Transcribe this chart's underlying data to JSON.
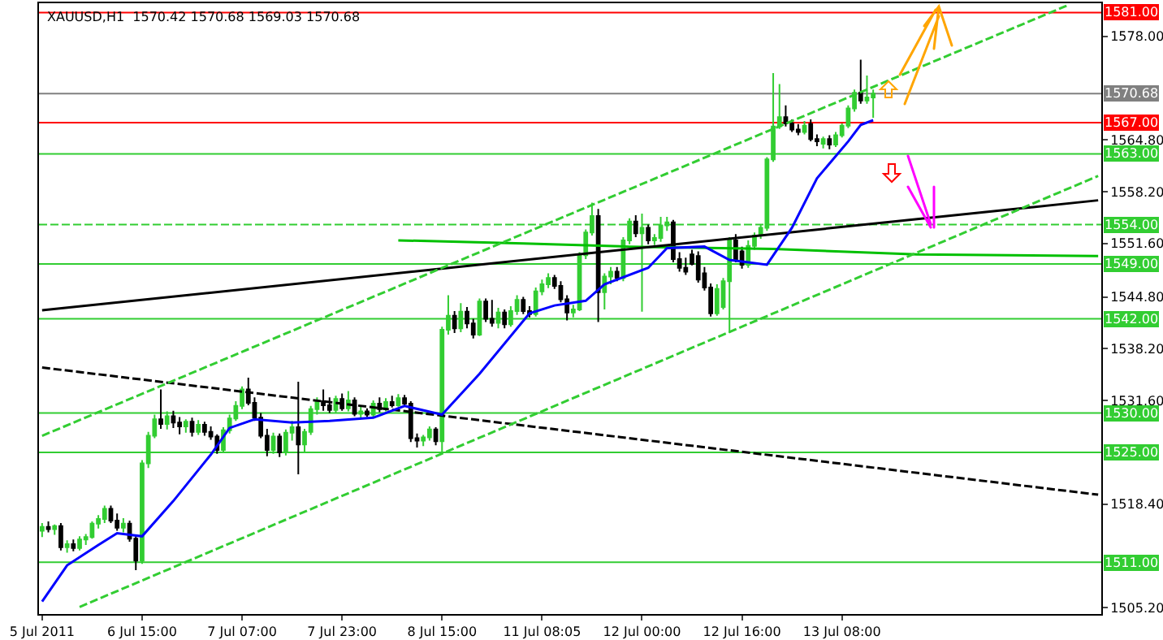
{
  "chart_data": {
    "type": "candlestick",
    "title": "XAUUSD,H1  1570.42 1570.68 1569.03 1570.68",
    "categories": [
      "5 Jul 2011",
      null,
      null,
      null,
      null,
      null,
      null,
      null,
      null,
      null,
      null,
      null,
      null,
      null,
      null,
      null,
      "6 Jul 15:00",
      null,
      null,
      null,
      null,
      null,
      null,
      null,
      null,
      null,
      null,
      null,
      null,
      null,
      null,
      null,
      "7 Jul 07:00",
      null,
      null,
      null,
      null,
      null,
      null,
      null,
      null,
      null,
      null,
      null,
      null,
      null,
      null,
      null,
      "7 Jul 23:00",
      null,
      null,
      null,
      null,
      null,
      null,
      null,
      null,
      null,
      null,
      null,
      null,
      null,
      null,
      null,
      "8 Jul 15:00",
      null,
      null,
      null,
      null,
      null,
      null,
      null,
      null,
      null,
      null,
      null,
      null,
      null,
      null,
      null,
      "11 Jul 08:05",
      null,
      null,
      null,
      null,
      null,
      null,
      null,
      null,
      null,
      null,
      null,
      null,
      null,
      null,
      null,
      "12 Jul 00:00",
      null,
      null,
      null,
      null,
      null,
      null,
      null,
      null,
      null,
      null,
      null,
      null,
      null,
      null,
      null,
      "12 Jul 16:00",
      null,
      null,
      null,
      null,
      null,
      null,
      null,
      null,
      null,
      null,
      null,
      null,
      null,
      null,
      null,
      "13 Jul 08:00",
      null,
      null,
      null,
      null,
      null,
      null,
      null,
      null,
      null,
      null,
      null,
      null,
      null,
      null,
      null,
      null,
      null,
      null,
      null,
      null,
      null,
      null,
      null,
      null,
      null,
      null,
      null,
      null,
      null,
      null,
      null,
      null,
      null,
      null,
      null,
      null,
      null,
      null,
      null,
      null,
      null
    ],
    "colors": [
      "#32cd32",
      "#000000",
      "#32cd32",
      "#000000",
      "#32cd32",
      "#000000",
      "#32cd32",
      "#32cd32",
      "#32cd32",
      "#32cd32",
      "#32cd32",
      "#000000",
      "#000000",
      "#32cd32",
      "#000000",
      "#000000",
      "#32cd32",
      "#32cd32",
      "#32cd32",
      "#000000",
      "#32cd32",
      "#000000",
      "#000000",
      "#32cd32",
      "#000000",
      "#32cd32",
      "#000000",
      "#000000",
      "#000000",
      "#32cd32",
      "#32cd32",
      "#32cd32",
      "#32cd32",
      "#000000",
      "#000000",
      "#000000",
      "#000000",
      "#32cd32",
      "#000000",
      "#32cd32",
      "#32cd32",
      "#000000",
      "#32cd32",
      "#32cd32",
      "#32cd32",
      "#000000",
      "#000000",
      "#32cd32",
      "#000000",
      "#32cd32",
      "#000000",
      "#32cd32",
      "#000000",
      "#32cd32",
      "#000000",
      "#32cd32",
      "#000000",
      "#32cd32",
      "#000000",
      "#000000",
      "#000000",
      "#32cd32",
      "#32cd32",
      "#000000",
      "#32cd32",
      "#32cd32",
      "#000000",
      "#32cd32",
      "#000000",
      "#000000",
      "#32cd32",
      "#000000",
      "#000000",
      "#32cd32",
      "#000000",
      "#32cd32",
      "#32cd32",
      "#000000",
      "#000000",
      "#32cd32",
      "#32cd32",
      "#32cd32",
      "#000000",
      "#000000",
      "#000000",
      "#32cd32",
      "#32cd32",
      "#32cd32",
      "#32cd32",
      "#000000",
      "#32cd32",
      "#32cd32",
      "#000000",
      "#32cd32",
      "#32cd32",
      "#000000",
      "#32cd32",
      "#000000",
      "#32cd32",
      "#32cd32",
      "#32cd32",
      "#000000",
      "#000000",
      "#000000",
      "#000000",
      "#000000",
      "#000000",
      "#000000",
      "#32cd32",
      "#32cd32",
      "#32cd32",
      "#000000",
      "#000000",
      "#32cd32",
      "#32cd32",
      "#32cd32",
      "#32cd32",
      "#32cd32",
      "#32cd32",
      "#000000",
      "#000000",
      "#000000",
      "#32cd32",
      "#000000",
      "#000000",
      "#32cd32",
      "#000000",
      "#32cd32",
      "#32cd32",
      "#32cd32",
      "#32cd32",
      "#000000",
      "#32cd32",
      "#32cd32",
      null,
      null,
      null,
      null,
      null,
      null,
      null,
      null,
      null,
      null,
      null,
      null,
      null,
      null,
      null,
      null,
      null,
      null,
      null,
      null,
      null,
      null,
      null,
      null,
      null,
      null,
      null,
      null,
      null,
      null,
      null,
      null,
      null,
      null,
      null,
      null
    ],
    "ohlc": [
      [
        1515.0,
        1516.0,
        1514.2,
        1515.5
      ],
      [
        1515.5,
        1516.2,
        1514.8,
        1515.2
      ],
      [
        1515.2,
        1515.8,
        1514.5,
        1515.6
      ],
      [
        1515.6,
        1516.0,
        1512.5,
        1512.9
      ],
      [
        1512.9,
        1513.8,
        1512.2,
        1513.3
      ],
      [
        1513.3,
        1513.9,
        1512.4,
        1512.8
      ],
      [
        1512.8,
        1514.3,
        1512.5,
        1513.9
      ],
      [
        1513.9,
        1514.6,
        1513.2,
        1514.2
      ],
      [
        1514.2,
        1516.2,
        1514.0,
        1515.9
      ],
      [
        1515.9,
        1517.0,
        1515.3,
        1516.5
      ],
      [
        1516.5,
        1518.2,
        1516.0,
        1517.8
      ],
      [
        1517.8,
        1518.2,
        1516.0,
        1516.3
      ],
      [
        1516.3,
        1517.2,
        1515.0,
        1515.4
      ],
      [
        1515.4,
        1516.6,
        1514.8,
        1515.9
      ],
      [
        1515.9,
        1516.3,
        1513.6,
        1514.0
      ],
      [
        1514.0,
        1514.4,
        1510.0,
        1511.2
      ],
      [
        1511.2,
        1524.0,
        1510.8,
        1523.6
      ],
      [
        1523.6,
        1527.6,
        1523.0,
        1527.1
      ],
      [
        1527.1,
        1529.8,
        1526.8,
        1529.2
      ],
      [
        1529.2,
        1533.0,
        1528.0,
        1528.6
      ],
      [
        1528.6,
        1530.2,
        1527.9,
        1529.6
      ],
      [
        1529.6,
        1530.3,
        1528.1,
        1528.8
      ],
      [
        1528.8,
        1529.5,
        1527.3,
        1528.3
      ],
      [
        1528.3,
        1529.2,
        1527.5,
        1528.9
      ],
      [
        1528.9,
        1529.4,
        1527.0,
        1527.6
      ],
      [
        1527.6,
        1529.1,
        1527.2,
        1528.5
      ],
      [
        1528.5,
        1528.9,
        1527.1,
        1527.6
      ],
      [
        1527.6,
        1528.3,
        1526.6,
        1527.0
      ],
      [
        1527.0,
        1527.3,
        1524.8,
        1525.3
      ],
      [
        1525.3,
        1528.2,
        1525.0,
        1527.8
      ],
      [
        1527.8,
        1529.8,
        1527.4,
        1529.3
      ],
      [
        1529.3,
        1531.5,
        1529.0,
        1530.9
      ],
      [
        1530.9,
        1533.4,
        1530.5,
        1533.0
      ],
      [
        1533.0,
        1534.5,
        1531.0,
        1531.3
      ],
      [
        1531.3,
        1532.0,
        1529.0,
        1529.4
      ],
      [
        1529.4,
        1530.0,
        1526.8,
        1527.1
      ],
      [
        1527.1,
        1528.0,
        1524.5,
        1525.3
      ],
      [
        1525.3,
        1527.5,
        1524.8,
        1527.0
      ],
      [
        1527.0,
        1527.4,
        1524.4,
        1525.0
      ],
      [
        1525.0,
        1527.9,
        1524.6,
        1527.5
      ],
      [
        1527.5,
        1529.0,
        1526.5,
        1528.2
      ],
      [
        1528.2,
        1534.0,
        1522.2,
        1526.0
      ],
      [
        1526.0,
        1528.0,
        1525.0,
        1527.6
      ],
      [
        1527.6,
        1530.9,
        1527.2,
        1530.5
      ],
      [
        1530.5,
        1532.0,
        1529.8,
        1531.5
      ],
      [
        1531.5,
        1533.0,
        1530.3,
        1531.0
      ],
      [
        1531.0,
        1532.0,
        1530.0,
        1530.4
      ],
      [
        1530.4,
        1532.2,
        1530.0,
        1531.8
      ],
      [
        1531.8,
        1532.5,
        1530.3,
        1530.6
      ],
      [
        1530.6,
        1532.8,
        1530.2,
        1531.6
      ],
      [
        1531.6,
        1532.0,
        1529.6,
        1529.9
      ],
      [
        1529.9,
        1530.8,
        1529.4,
        1530.2
      ],
      [
        1530.2,
        1530.6,
        1529.5,
        1529.8
      ],
      [
        1529.8,
        1531.6,
        1529.5,
        1531.2
      ],
      [
        1531.2,
        1532.0,
        1530.1,
        1530.5
      ],
      [
        1530.5,
        1531.9,
        1530.2,
        1531.4
      ],
      [
        1531.4,
        1532.2,
        1530.7,
        1531.0
      ],
      [
        1531.0,
        1532.4,
        1530.8,
        1531.9
      ],
      [
        1531.9,
        1532.3,
        1530.9,
        1531.2
      ],
      [
        1531.2,
        1531.5,
        1526.3,
        1526.8
      ],
      [
        1526.8,
        1527.4,
        1525.6,
        1526.5
      ],
      [
        1526.5,
        1527.2,
        1525.8,
        1526.9
      ],
      [
        1526.9,
        1528.3,
        1526.5,
        1527.9
      ],
      [
        1527.9,
        1528.2,
        1525.9,
        1526.4
      ],
      [
        1526.4,
        1541.0,
        1525.0,
        1540.6
      ],
      [
        1540.6,
        1545.0,
        1540.0,
        1542.4
      ],
      [
        1542.4,
        1543.0,
        1540.2,
        1540.8
      ],
      [
        1540.8,
        1544.0,
        1540.3,
        1542.9
      ],
      [
        1542.9,
        1543.5,
        1540.8,
        1541.4
      ],
      [
        1541.4,
        1542.0,
        1539.5,
        1540.0
      ],
      [
        1540.0,
        1544.6,
        1539.8,
        1544.2
      ],
      [
        1544.2,
        1544.6,
        1541.6,
        1542.0
      ],
      [
        1542.0,
        1544.4,
        1541.0,
        1541.5
      ],
      [
        1541.5,
        1543.4,
        1540.8,
        1542.8
      ],
      [
        1542.8,
        1543.2,
        1540.8,
        1541.3
      ],
      [
        1541.3,
        1543.6,
        1541.0,
        1543.0
      ],
      [
        1543.0,
        1545.0,
        1542.5,
        1544.4
      ],
      [
        1544.4,
        1544.8,
        1542.6,
        1543.0
      ],
      [
        1543.0,
        1543.6,
        1542.2,
        1542.6
      ],
      [
        1542.6,
        1546.0,
        1542.3,
        1545.5
      ],
      [
        1545.5,
        1547.0,
        1545.0,
        1546.4
      ],
      [
        1546.4,
        1547.8,
        1545.9,
        1547.2
      ],
      [
        1547.2,
        1547.6,
        1545.8,
        1546.2
      ],
      [
        1546.2,
        1546.8,
        1544.1,
        1544.5
      ],
      [
        1544.5,
        1545.0,
        1541.8,
        1542.8
      ],
      [
        1542.8,
        1543.8,
        1542.2,
        1543.2
      ],
      [
        1543.2,
        1550.5,
        1543.0,
        1550.1
      ],
      [
        1550.1,
        1553.4,
        1549.6,
        1553.0
      ],
      [
        1553.0,
        1556.8,
        1552.6,
        1555.1
      ],
      [
        1555.1,
        1556.0,
        1541.6,
        1545.4
      ],
      [
        1545.4,
        1547.8,
        1543.2,
        1547.4
      ],
      [
        1547.4,
        1548.6,
        1546.4,
        1548.0
      ],
      [
        1548.0,
        1548.6,
        1546.8,
        1547.2
      ],
      [
        1547.2,
        1552.4,
        1546.8,
        1552.0
      ],
      [
        1552.0,
        1554.8,
        1551.5,
        1554.4
      ],
      [
        1554.4,
        1555.2,
        1552.4,
        1552.9
      ],
      [
        1552.9,
        1555.4,
        1542.9,
        1553.6
      ],
      [
        1553.6,
        1554.0,
        1551.5,
        1552.0
      ],
      [
        1552.0,
        1552.8,
        1551.4,
        1552.3
      ],
      [
        1552.3,
        1555.0,
        1551.8,
        1553.9
      ],
      [
        1553.9,
        1555.0,
        1553.2,
        1554.3
      ],
      [
        1554.3,
        1554.6,
        1549.2,
        1549.6
      ],
      [
        1549.6,
        1550.5,
        1548.0,
        1548.5
      ],
      [
        1548.5,
        1549.8,
        1547.6,
        1548.0
      ],
      [
        1550.2,
        1550.8,
        1548.8,
        1549.0
      ],
      [
        1550.0,
        1550.6,
        1546.6,
        1547.0
      ],
      [
        1547.8,
        1548.6,
        1545.6,
        1546.0
      ],
      [
        1546.0,
        1546.5,
        1542.3,
        1542.7
      ],
      [
        1542.7,
        1546.4,
        1542.4,
        1545.8
      ],
      [
        1543.5,
        1547.2,
        1543.2,
        1546.8
      ],
      [
        1546.8,
        1552.4,
        1540.2,
        1552.0
      ],
      [
        1552.0,
        1552.8,
        1549.2,
        1549.6
      ],
      [
        1550.6,
        1551.2,
        1548.4,
        1548.9
      ],
      [
        1548.9,
        1552.0,
        1548.5,
        1551.3
      ],
      [
        1551.3,
        1553.0,
        1550.8,
        1552.6
      ],
      [
        1552.6,
        1554.0,
        1552.2,
        1553.6
      ],
      [
        1553.6,
        1562.6,
        1553.2,
        1562.3
      ],
      [
        1562.3,
        1573.3,
        1562.0,
        1566.5
      ],
      [
        1566.5,
        1571.9,
        1566.2,
        1567.7
      ],
      [
        1567.7,
        1569.2,
        1566.5,
        1566.9
      ],
      [
        1566.9,
        1567.4,
        1565.8,
        1566.1
      ],
      [
        1566.1,
        1566.8,
        1565.4,
        1565.8
      ],
      [
        1565.8,
        1567.2,
        1565.5,
        1566.6
      ],
      [
        1566.8,
        1567.4,
        1564.6,
        1564.9
      ],
      [
        1564.9,
        1565.5,
        1564.0,
        1564.6
      ],
      [
        1564.3,
        1565.2,
        1563.7,
        1564.9
      ],
      [
        1564.9,
        1565.4,
        1563.6,
        1564.2
      ],
      [
        1564.2,
        1565.8,
        1563.9,
        1565.4
      ],
      [
        1565.4,
        1566.9,
        1565.1,
        1566.6
      ],
      [
        1566.6,
        1569.2,
        1566.3,
        1568.8
      ],
      [
        1568.8,
        1571.2,
        1568.4,
        1570.8
      ],
      [
        1570.8,
        1575.0,
        1569.4,
        1569.8
      ],
      [
        1569.8,
        1573.0,
        1569.4,
        1570.2
      ],
      [
        1570.2,
        1571.2,
        1567.6,
        1570.68
      ],
      null,
      null,
      null,
      null,
      null,
      null,
      null,
      null,
      null,
      null,
      null,
      null,
      null,
      null,
      null,
      null,
      null,
      null,
      null,
      null,
      null,
      null,
      null,
      null,
      null,
      null,
      null,
      null,
      null,
      null,
      null,
      null,
      null,
      null,
      null,
      null
    ],
    "series": [
      {
        "type": "line",
        "color": "#00c000",
        "line_style": "solid",
        "values": [
          null,
          null,
          null,
          null,
          null,
          null,
          null,
          null,
          null,
          null,
          null,
          null,
          null,
          null,
          null,
          null,
          null,
          null,
          null,
          null,
          null,
          null,
          null,
          null,
          null,
          null,
          null,
          null,
          null,
          null,
          null,
          null,
          null,
          null,
          null,
          null,
          null,
          null,
          null,
          null,
          null,
          null,
          null,
          null,
          null,
          null,
          null,
          null,
          null,
          null,
          null,
          null,
          null,
          null,
          null,
          null,
          null,
          1552.0,
          null,
          null,
          null,
          null,
          null,
          null,
          null,
          null,
          null,
          null,
          null,
          null,
          null,
          null,
          null,
          null,
          null,
          null,
          null,
          1551.6,
          null,
          null,
          null,
          null,
          null,
          null,
          null,
          null,
          null,
          null,
          null,
          null,
          null,
          null,
          null,
          null,
          1551.2,
          null,
          null,
          null,
          null,
          null,
          null,
          null,
          null,
          null,
          null,
          null,
          null,
          null,
          null,
          null,
          null,
          null,
          null,
          null,
          null,
          null,
          null,
          1550.9,
          null,
          null,
          null,
          null,
          null,
          null,
          null,
          null,
          null,
          null,
          null,
          null,
          null,
          null,
          null,
          null,
          null,
          null,
          null,
          null,
          null,
          null,
          1550.2,
          null,
          null,
          null,
          null,
          null,
          null,
          null,
          null,
          null,
          null,
          null,
          null,
          null,
          null,
          null,
          null,
          null,
          null,
          null,
          null,
          null,
          null,
          null,
          null,
          null,
          null,
          null,
          null,
          1550.0
        ]
      },
      {
        "type": "line",
        "color": "#000000",
        "line_style": "solid",
        "values": [
          1543.1,
          null,
          null,
          null,
          null,
          null,
          null,
          null,
          null,
          null,
          null,
          null,
          null,
          null,
          null,
          null,
          null,
          null,
          null,
          null,
          null,
          null,
          null,
          null,
          null,
          null,
          null,
          null,
          null,
          null,
          null,
          null,
          null,
          null,
          null,
          null,
          null,
          null,
          null,
          null,
          null,
          null,
          null,
          null,
          null,
          null,
          null,
          null,
          null,
          null,
          null,
          null,
          null,
          null,
          null,
          null,
          null,
          null,
          null,
          null,
          null,
          null,
          null,
          null,
          null,
          null,
          null,
          null,
          null,
          null,
          null,
          null,
          null,
          null,
          null,
          null,
          null,
          null,
          null,
          null,
          null,
          null,
          null,
          null,
          null,
          null,
          null,
          null,
          null,
          null,
          null,
          null,
          null,
          null,
          null,
          null,
          null,
          null,
          null,
          null,
          null,
          null,
          null,
          null,
          null,
          null,
          null,
          null,
          null,
          null,
          null,
          null,
          null,
          null,
          null,
          null,
          null,
          null,
          null,
          null,
          null,
          null,
          null,
          null,
          null,
          null,
          null,
          null,
          null,
          null,
          null,
          null,
          null,
          null,
          null,
          null,
          null,
          null,
          null,
          null,
          null,
          null,
          null,
          null,
          null,
          null,
          null,
          null,
          null,
          null,
          null,
          null,
          null,
          null,
          null,
          null,
          null,
          null,
          null,
          null,
          null,
          null,
          null,
          null,
          null,
          null,
          null,
          null,
          null,
          1557.1
        ]
      },
      {
        "type": "line",
        "color": "#000000",
        "line_style": "dashed",
        "values": [
          1535.8,
          null,
          null,
          null,
          null,
          null,
          null,
          null,
          null,
          null,
          null,
          null,
          null,
          null,
          null,
          null,
          null,
          null,
          null,
          null,
          null,
          null,
          null,
          null,
          null,
          null,
          null,
          null,
          null,
          null,
          null,
          null,
          null,
          null,
          null,
          null,
          null,
          null,
          null,
          null,
          null,
          null,
          null,
          null,
          null,
          null,
          null,
          null,
          null,
          null,
          null,
          null,
          null,
          null,
          null,
          null,
          null,
          null,
          null,
          null,
          null,
          null,
          null,
          null,
          null,
          null,
          null,
          null,
          null,
          null,
          null,
          null,
          null,
          null,
          null,
          null,
          null,
          null,
          null,
          null,
          null,
          null,
          null,
          null,
          null,
          null,
          null,
          null,
          null,
          null,
          null,
          null,
          null,
          null,
          null,
          null,
          null,
          null,
          null,
          null,
          null,
          null,
          null,
          null,
          null,
          null,
          null,
          null,
          null,
          null,
          null,
          null,
          null,
          null,
          null,
          null,
          null,
          null,
          null,
          null,
          null,
          null,
          null,
          null,
          null,
          null,
          null,
          null,
          null,
          null,
          null,
          null,
          null,
          null,
          null,
          null,
          null,
          null,
          null,
          null,
          null,
          null,
          null,
          null,
          null,
          null,
          null,
          null,
          null,
          null,
          null,
          null,
          null,
          null,
          null,
          null,
          null,
          null,
          null,
          null,
          null,
          null,
          null,
          null,
          null,
          null,
          null,
          null,
          null,
          1519.6
        ]
      },
      {
        "type": "line",
        "color": "#32cd32",
        "line_style": "dashed",
        "values": [
          1527.1,
          null,
          null,
          null,
          null,
          null,
          null,
          null,
          null,
          null,
          null,
          null,
          null,
          null,
          null,
          null,
          null,
          null,
          null,
          null,
          null,
          null,
          null,
          null,
          null,
          null,
          null,
          null,
          null,
          null,
          null,
          null,
          null,
          null,
          null,
          null,
          null,
          null,
          null,
          null,
          null,
          null,
          null,
          null,
          null,
          null,
          null,
          null,
          null,
          null,
          null,
          null,
          null,
          null,
          null,
          null,
          null,
          null,
          null,
          null,
          null,
          null,
          null,
          null,
          null,
          null,
          null,
          null,
          null,
          null,
          null,
          null,
          null,
          null,
          null,
          null,
          null,
          null,
          null,
          null,
          null,
          null,
          null,
          null,
          null,
          null,
          null,
          null,
          null,
          null,
          null,
          null,
          null,
          null,
          null,
          null,
          null,
          null,
          null,
          null,
          null,
          null,
          null,
          null,
          null,
          null,
          null,
          null,
          null,
          null,
          null,
          null,
          null,
          null,
          null,
          null,
          null,
          null,
          null,
          null,
          null,
          null,
          null,
          null,
          null,
          null,
          null,
          null,
          null,
          null,
          null,
          null,
          null,
          null,
          null,
          null,
          null,
          null,
          null,
          null,
          null,
          null,
          null,
          null,
          null,
          null,
          null,
          null,
          null,
          null,
          null,
          null,
          null,
          null,
          null,
          null,
          null,
          null,
          null,
          null,
          null,
          null,
          null,
          null,
          1581.9,
          null,
          null,
          null,
          null,
          null
        ]
      },
      {
        "type": "line",
        "color": "#32cd32",
        "line_style": "dashed",
        "values": [
          null,
          null,
          null,
          null,
          null,
          null,
          1505.3,
          null,
          null,
          null,
          null,
          null,
          null,
          null,
          null,
          null,
          null,
          null,
          null,
          null,
          null,
          null,
          null,
          null,
          null,
          null,
          null,
          null,
          null,
          null,
          null,
          null,
          null,
          null,
          null,
          null,
          null,
          null,
          null,
          null,
          null,
          null,
          null,
          null,
          null,
          null,
          null,
          null,
          null,
          null,
          null,
          null,
          null,
          null,
          null,
          null,
          null,
          null,
          null,
          null,
          null,
          null,
          null,
          null,
          null,
          null,
          null,
          null,
          null,
          null,
          null,
          null,
          null,
          null,
          null,
          null,
          null,
          null,
          null,
          null,
          null,
          null,
          null,
          null,
          null,
          null,
          null,
          null,
          null,
          null,
          null,
          null,
          null,
          null,
          null,
          null,
          null,
          null,
          null,
          null,
          null,
          null,
          null,
          null,
          null,
          null,
          null,
          null,
          null,
          null,
          null,
          null,
          null,
          null,
          null,
          null,
          null,
          null,
          null,
          null,
          null,
          null,
          null,
          null,
          null,
          null,
          null,
          null,
          null,
          null,
          null,
          null,
          null,
          null,
          null,
          null,
          null,
          null,
          null,
          null,
          null,
          null,
          null,
          null,
          null,
          null,
          null,
          null,
          null,
          null,
          null,
          null,
          null,
          null,
          null,
          null,
          null,
          null,
          null,
          null,
          null,
          null,
          null,
          null,
          null,
          null,
          null,
          null,
          null,
          1560.2
        ]
      },
      {
        "type": "line",
        "color": "#0000ff",
        "line_style": "solid",
        "values": [
          1506.0,
          null,
          null,
          null,
          1510.6,
          null,
          null,
          null,
          null,
          1513.2,
          null,
          null,
          1514.7,
          null,
          null,
          null,
          1514.3,
          null,
          null,
          null,
          null,
          1518.8,
          null,
          null,
          null,
          null,
          null,
          1524.7,
          null,
          null,
          1528.1,
          null,
          null,
          null,
          1529.2,
          null,
          null,
          null,
          null,
          null,
          1528.8,
          null,
          null,
          null,
          null,
          null,
          1529.0,
          null,
          null,
          null,
          null,
          null,
          null,
          1529.4,
          null,
          null,
          null,
          null,
          1530.9,
          null,
          null,
          null,
          null,
          null,
          1529.8,
          null,
          null,
          null,
          null,
          null,
          1535.0,
          null,
          null,
          null,
          null,
          null,
          null,
          null,
          1542.7,
          null,
          null,
          null,
          1543.7,
          null,
          null,
          null,
          null,
          1544.3,
          null,
          null,
          1546.4,
          null,
          null,
          null,
          null,
          null,
          null,
          1548.5,
          null,
          null,
          1551.0,
          null,
          null,
          null,
          null,
          null,
          1551.2,
          null,
          null,
          null,
          1549.5,
          null,
          null,
          null,
          null,
          null,
          1548.9,
          null,
          null,
          null,
          1553.6,
          null,
          null,
          null,
          1559.9,
          null,
          null,
          null,
          null,
          1564.6,
          null,
          1566.7,
          null,
          1567.3,
          null,
          null,
          null,
          null,
          null,
          null,
          null,
          null,
          null,
          null,
          null,
          null,
          null,
          null,
          null,
          null,
          null,
          null,
          null,
          null,
          null,
          null,
          null,
          null,
          null,
          null,
          null,
          null,
          null,
          null,
          null,
          null,
          null,
          null,
          null,
          null
        ]
      }
    ],
    "ylim": [
      1504.4,
      1582.2
    ],
    "yticks": [
      {
        "value": 1505.2,
        "label": "1505.20"
      },
      {
        "value": 1518.4,
        "label": "1518.40"
      },
      {
        "value": 1531.6,
        "label": "1531.60"
      },
      {
        "value": 1538.2,
        "label": "1538.20"
      },
      {
        "value": 1544.8,
        "label": "1544.80"
      },
      {
        "value": 1551.6,
        "label": "1551.60"
      },
      {
        "value": 1558.2,
        "label": "1558.20"
      },
      {
        "value": 1564.8,
        "label": "1564.80"
      },
      {
        "value": 1578,
        "label": "1578.00"
      }
    ],
    "ref_lines": [
      {
        "axis": "y",
        "value": 1581,
        "label": "1581.00",
        "color": "#ff0000",
        "line_style": "solid"
      },
      {
        "axis": "y",
        "value": 1570.68,
        "label": "1570.68",
        "color": "#808080",
        "line_style": "solid"
      },
      {
        "axis": "y",
        "value": 1567,
        "label": "1567.00",
        "color": "#ff0000",
        "line_style": "solid"
      },
      {
        "axis": "y",
        "value": 1563,
        "label": "1563.00",
        "color": "#32cd32",
        "line_style": "solid"
      },
      {
        "axis": "y",
        "value": 1554,
        "label": "1554.00",
        "color": "#32cd32",
        "line_style": "dashed"
      },
      {
        "axis": "y",
        "value": 1549,
        "label": "1549.00",
        "color": "#32cd32",
        "line_style": "solid"
      },
      {
        "axis": "y",
        "value": 1542,
        "label": "1542.00",
        "color": "#32cd32",
        "line_style": "solid"
      },
      {
        "axis": "y",
        "value": 1530,
        "label": "1530.00",
        "color": "#32cd32",
        "line_style": "solid"
      },
      {
        "axis": "y",
        "value": 1525,
        "label": "1525.00",
        "color": "#32cd32",
        "line_style": "solid"
      },
      {
        "axis": "y",
        "value": 1511,
        "label": "1511.00",
        "color": "#32cd32",
        "line_style": "solid"
      }
    ]
  }
}
